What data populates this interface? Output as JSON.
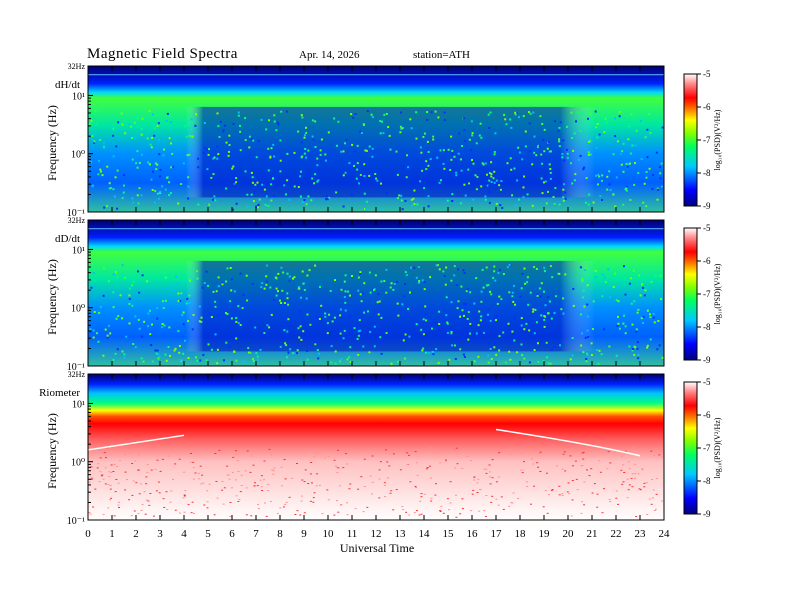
{
  "header": {
    "title": "Magnetic  Field  Spectra",
    "date": "Apr. 14, 2026",
    "station": "station=ATH"
  },
  "chart_data": [
    {
      "type": "heatmap",
      "panel_label": "dH/dt",
      "ylabel": "Frequency (Hz)",
      "top_label": "32Hz",
      "yticks": [
        "10¹",
        "10⁰",
        "10⁻¹"
      ],
      "ylim": [
        0.1,
        32
      ],
      "yscale": "log",
      "xlim": [
        0,
        24
      ],
      "colorbar": {
        "label": "log₁₀(PSD)(V²/Hz)",
        "range": [
          -9,
          -5
        ],
        "ticks": [
          "-5",
          "-6",
          "-7",
          "-8",
          "-9"
        ]
      }
    },
    {
      "type": "heatmap",
      "panel_label": "dD/dt",
      "ylabel": "Frequency (Hz)",
      "top_label": "32Hz",
      "yticks": [
        "10¹",
        "10⁰",
        "10⁻¹"
      ],
      "ylim": [
        0.1,
        32
      ],
      "yscale": "log",
      "xlim": [
        0,
        24
      ],
      "colorbar": {
        "label": "log₁₀(PSD)(V²/Hz)",
        "range": [
          -9,
          -5
        ],
        "ticks": [
          "-5",
          "-6",
          "-7",
          "-8",
          "-9"
        ]
      }
    },
    {
      "type": "heatmap",
      "panel_label": "Riometer",
      "ylabel": "Frequency (Hz)",
      "top_label": "32Hz",
      "yticks": [
        "10¹",
        "10⁰",
        "10⁻¹"
      ],
      "ylim": [
        0.1,
        32
      ],
      "yscale": "log",
      "xlim": [
        0,
        24
      ],
      "colorbar": {
        "label": "log₁₀(PSD)(V²/Hz)",
        "range": [
          -9,
          -5
        ],
        "ticks": [
          "-5",
          "-6",
          "-7",
          "-8",
          "-9"
        ]
      }
    }
  ],
  "xaxis": {
    "label": "Universal Time",
    "ticks": [
      "0",
      "1",
      "2",
      "3",
      "4",
      "5",
      "6",
      "7",
      "8",
      "9",
      "10",
      "11",
      "12",
      "13",
      "14",
      "15",
      "16",
      "17",
      "18",
      "19",
      "20",
      "21",
      "22",
      "23",
      "24"
    ]
  }
}
